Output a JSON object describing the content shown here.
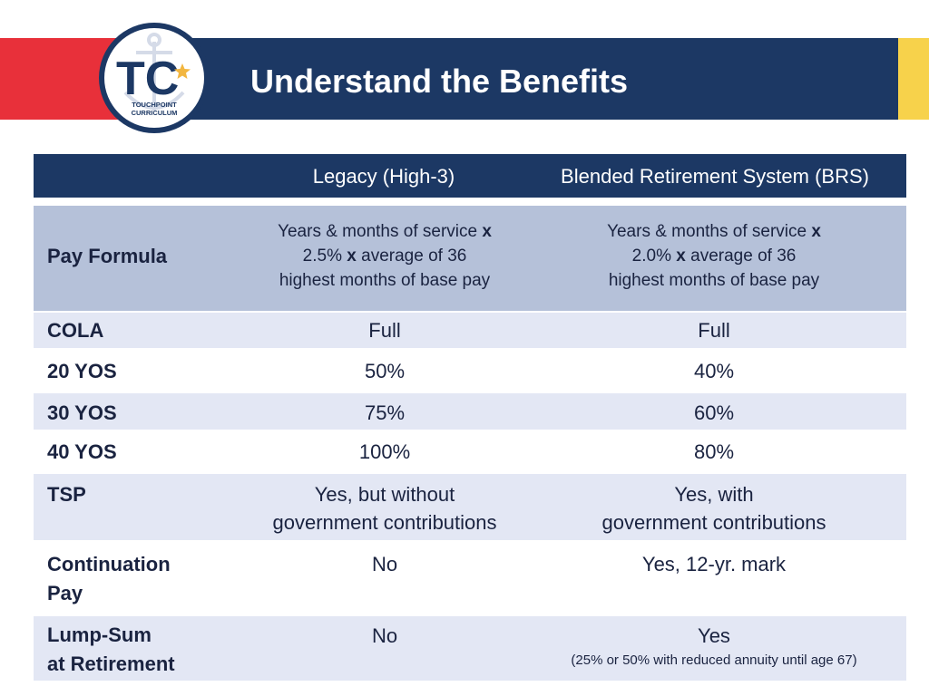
{
  "header": {
    "title": "Understand the Benefits",
    "logo_text": "TC",
    "logo_subtitle_1": "TOUCHPOINT",
    "logo_subtitle_2": "CURRICULUM"
  },
  "table": {
    "columns": [
      "Legacy (High-3)",
      "Blended Retirement System (BRS)"
    ],
    "pay_formula": {
      "label": "Pay Formula",
      "legacy": {
        "line1_pre": "Years & months of service ",
        "line1_x": "x",
        "line2_pre": "2.5%  ",
        "line2_x": "x",
        "line2_post": "  average of 36",
        "line3": "highest months of base pay"
      },
      "brs": {
        "line1_pre": "Years & months of service ",
        "line1_x": "x",
        "line2_pre": "2.0%  ",
        "line2_x": "x",
        "line2_post": "  average of 36",
        "line3": "highest months of base pay"
      }
    },
    "cola": {
      "label": "COLA",
      "legacy": "Full",
      "brs": "Full"
    },
    "yos20": {
      "label": "20 YOS",
      "legacy": "50%",
      "brs": "40%"
    },
    "yos30": {
      "label": "30 YOS",
      "legacy": "75%",
      "brs": "60%"
    },
    "yos40": {
      "label": "40 YOS",
      "legacy": "100%",
      "brs": "80%"
    },
    "tsp": {
      "label": "TSP",
      "legacy_1": "Yes, but without",
      "legacy_2": "government contributions",
      "brs_1": "Yes, with",
      "brs_2": "government contributions"
    },
    "continuation": {
      "label_1": "Continuation",
      "label_2": "Pay",
      "legacy": "No",
      "brs": "Yes, 12-yr. mark"
    },
    "lump_sum": {
      "label_1": "Lump-Sum",
      "label_2": "at Retirement",
      "legacy": "No",
      "brs": "Yes",
      "brs_note": "(25% or 50% with reduced annuity until age 67)"
    }
  },
  "colors": {
    "navy": "#1c3864",
    "red": "#e8303a",
    "yellow": "#f7d24b",
    "row_dark": "#b5c1d9",
    "row_light": "#e3e7f4"
  }
}
